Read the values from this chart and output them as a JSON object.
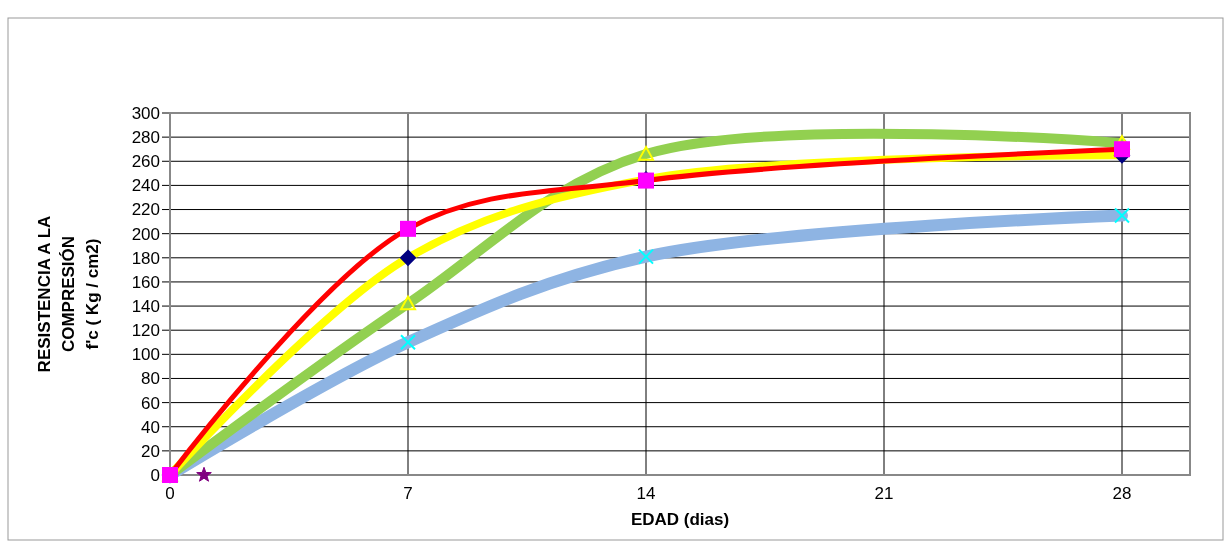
{
  "chart_data": {
    "type": "line",
    "xlabel": "EDAD (dias)",
    "ylabel": "RESISTENCIA A LA\nCOMPRESIÓN\nf'c ( Kg / cm2)",
    "xlim": [
      0,
      30
    ],
    "xticks": [
      0,
      7,
      14,
      21,
      28
    ],
    "ylim": [
      0,
      300
    ],
    "yticks": [
      0,
      20,
      40,
      60,
      80,
      100,
      120,
      140,
      160,
      180,
      200,
      220,
      240,
      260,
      280,
      300
    ],
    "grid": true,
    "series": [
      {
        "x": [
          0,
          7,
          14,
          28
        ],
        "values": [
          0,
          110,
          181,
          215
        ],
        "color": "#8eb4e3",
        "marker": "cross",
        "colors": [
          "#00ffff",
          "#00ffff",
          "#00ffff",
          "#00ffff"
        ]
      },
      {
        "x": [
          0,
          7,
          14,
          28
        ],
        "values": [
          0,
          142,
          266,
          275
        ],
        "color": "#92d050",
        "marker": "triangle",
        "colors": [
          "#ffff00",
          "#ffff00",
          "#ffff00",
          "#ffff00"
        ]
      },
      {
        "x": [
          0,
          7,
          14,
          28
        ],
        "values": [
          0,
          180,
          245,
          265
        ],
        "color": "#ffff00",
        "marker": "diamond",
        "colors": [
          "#000080",
          "#000080",
          "#000080",
          "#000080"
        ]
      },
      {
        "x": [
          0,
          7,
          14,
          28
        ],
        "values": [
          0,
          204,
          244,
          270
        ],
        "color": "#ff0000",
        "marker": "square",
        "colors": [
          "#ff00ff",
          "#ff00ff",
          "#ff00ff",
          "#ff00ff"
        ]
      },
      {
        "type": "scatter",
        "x": [
          1
        ],
        "values": [
          0
        ],
        "color": "#800080",
        "marker": "star"
      }
    ]
  }
}
